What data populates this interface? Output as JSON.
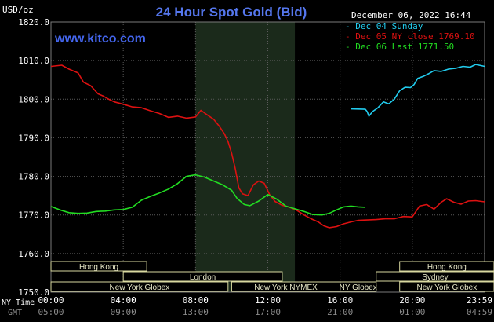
{
  "chart_data": {
    "type": "line",
    "title": "24 Hour Spot Gold (Bid)",
    "unit_label": "USD/oz",
    "watermark": "www.kitco.com",
    "timestamp": "December 06, 2022 16:44",
    "ylim": [
      1750,
      1820
    ],
    "yticks": [
      "1820.0",
      "1810.0",
      "1800.0",
      "1790.0",
      "1780.0",
      "1770.0",
      "1760.0",
      "1750.0"
    ],
    "ytick_values": [
      1820,
      1810,
      1800,
      1790,
      1780,
      1770,
      1760,
      1750
    ],
    "xlim": [
      0,
      24
    ],
    "x_unit": "hours (NY time)",
    "ny_time_label": "NY Time",
    "gmt_label": "GMT",
    "xticks_ny": [
      "00:00",
      "04:00",
      "08:00",
      "12:00",
      "16:00",
      "20:00",
      "23:59"
    ],
    "xticks_gmt": [
      "05:00",
      "09:00",
      "13:00",
      "17:00",
      "21:00",
      "01:00",
      "04:59"
    ],
    "xtick_hours": [
      0,
      4,
      8,
      12,
      16,
      20,
      24
    ],
    "shade": {
      "from": 8.0,
      "to": 13.5
    },
    "grid": true,
    "legend": "top-right",
    "series": [
      {
        "name": "Dec 04 Sunday",
        "color": "#22ccee",
        "points": [
          [
            16.6,
            1797.5
          ],
          [
            17.4,
            1797.4
          ],
          [
            17.5,
            1796.8
          ],
          [
            17.6,
            1795.6
          ],
          [
            17.8,
            1796.8
          ],
          [
            18.1,
            1797.8
          ],
          [
            18.4,
            1799.3
          ],
          [
            18.7,
            1798.8
          ],
          [
            19.0,
            1800.0
          ],
          [
            19.3,
            1802.2
          ],
          [
            19.6,
            1803.1
          ],
          [
            19.9,
            1803.0
          ],
          [
            20.1,
            1803.8
          ],
          [
            20.3,
            1805.4
          ],
          [
            20.6,
            1805.9
          ],
          [
            20.9,
            1806.6
          ],
          [
            21.2,
            1807.4
          ],
          [
            21.6,
            1807.2
          ],
          [
            22.0,
            1807.8
          ],
          [
            22.4,
            1808.0
          ],
          [
            22.8,
            1808.5
          ],
          [
            23.2,
            1808.3
          ],
          [
            23.5,
            1809.0
          ],
          [
            23.8,
            1808.7
          ],
          [
            24.0,
            1808.5
          ]
        ]
      },
      {
        "name": "Dec 05 NY close",
        "value": "1769.10",
        "color": "#dd1111",
        "points": [
          [
            0,
            1808.5
          ],
          [
            0.6,
            1808.8
          ],
          [
            1.0,
            1807.8
          ],
          [
            1.5,
            1806.8
          ],
          [
            1.8,
            1804.4
          ],
          [
            2.2,
            1803.5
          ],
          [
            2.6,
            1801.4
          ],
          [
            2.9,
            1800.8
          ],
          [
            3.2,
            1800.0
          ],
          [
            3.5,
            1799.3
          ],
          [
            4.0,
            1798.7
          ],
          [
            4.5,
            1798.0
          ],
          [
            5.0,
            1797.8
          ],
          [
            5.5,
            1797.0
          ],
          [
            6.0,
            1796.3
          ],
          [
            6.5,
            1795.3
          ],
          [
            7.0,
            1795.6
          ],
          [
            7.5,
            1795.1
          ],
          [
            8.0,
            1795.4
          ],
          [
            8.3,
            1797.1
          ],
          [
            8.6,
            1796.1
          ],
          [
            9.0,
            1794.8
          ],
          [
            9.3,
            1793.1
          ],
          [
            9.6,
            1791.0
          ],
          [
            9.8,
            1789.0
          ],
          [
            10.0,
            1786.0
          ],
          [
            10.2,
            1782.0
          ],
          [
            10.4,
            1777.0
          ],
          [
            10.6,
            1775.5
          ],
          [
            10.9,
            1775.0
          ],
          [
            11.2,
            1777.8
          ],
          [
            11.5,
            1778.8
          ],
          [
            11.8,
            1778.2
          ],
          [
            12.1,
            1775.3
          ],
          [
            12.4,
            1773.5
          ],
          [
            12.8,
            1772.5
          ],
          [
            13.2,
            1772.0
          ],
          [
            13.6,
            1771.2
          ],
          [
            14.0,
            1770.0
          ],
          [
            14.4,
            1769.0
          ],
          [
            14.8,
            1768.2
          ],
          [
            15.1,
            1767.2
          ],
          [
            15.4,
            1766.7
          ],
          [
            15.8,
            1767.0
          ],
          [
            16.2,
            1767.7
          ],
          [
            16.6,
            1768.2
          ],
          [
            17.0,
            1768.6
          ],
          [
            17.5,
            1768.7
          ],
          [
            18.0,
            1768.8
          ],
          [
            18.5,
            1769.0
          ],
          [
            19.0,
            1769.0
          ],
          [
            19.5,
            1769.6
          ],
          [
            20.0,
            1769.5
          ],
          [
            20.4,
            1772.3
          ],
          [
            20.8,
            1772.7
          ],
          [
            21.2,
            1771.5
          ],
          [
            21.6,
            1773.3
          ],
          [
            21.9,
            1774.2
          ],
          [
            22.3,
            1773.3
          ],
          [
            22.7,
            1772.8
          ],
          [
            23.1,
            1773.6
          ],
          [
            23.5,
            1773.7
          ],
          [
            24.0,
            1773.4
          ]
        ]
      },
      {
        "name": "Dec 06 Last",
        "value": "1771.50",
        "color": "#22dd22",
        "points": [
          [
            0,
            1772.2
          ],
          [
            0.5,
            1771.3
          ],
          [
            1.0,
            1770.6
          ],
          [
            1.5,
            1770.4
          ],
          [
            2.0,
            1770.5
          ],
          [
            2.5,
            1770.9
          ],
          [
            3.0,
            1771.0
          ],
          [
            3.5,
            1771.3
          ],
          [
            4.0,
            1771.4
          ],
          [
            4.5,
            1772.0
          ],
          [
            5.0,
            1773.8
          ],
          [
            5.5,
            1774.8
          ],
          [
            6.0,
            1775.7
          ],
          [
            6.5,
            1776.7
          ],
          [
            7.0,
            1778.1
          ],
          [
            7.5,
            1780.0
          ],
          [
            8.0,
            1780.4
          ],
          [
            8.5,
            1779.8
          ],
          [
            9.0,
            1778.8
          ],
          [
            9.5,
            1777.8
          ],
          [
            10.0,
            1776.4
          ],
          [
            10.3,
            1774.3
          ],
          [
            10.7,
            1772.7
          ],
          [
            11.0,
            1772.4
          ],
          [
            11.5,
            1773.6
          ],
          [
            12.0,
            1775.3
          ],
          [
            12.5,
            1774.1
          ],
          [
            13.0,
            1772.3
          ],
          [
            13.5,
            1771.6
          ],
          [
            14.0,
            1770.9
          ],
          [
            14.5,
            1770.1
          ],
          [
            15.0,
            1770.0
          ],
          [
            15.4,
            1770.4
          ],
          [
            15.8,
            1771.3
          ],
          [
            16.2,
            1772.1
          ],
          [
            16.6,
            1772.3
          ],
          [
            17.0,
            1772.1
          ],
          [
            17.4,
            1772.0
          ]
        ]
      }
    ],
    "market_bands": [
      {
        "label": "Hong Kong",
        "from": 0.0,
        "to": 5.3,
        "row": 0
      },
      {
        "label": "London",
        "from": 4.0,
        "to": 12.8,
        "row": 1
      },
      {
        "label": "New York Globex",
        "from": 0.0,
        "to": 9.8,
        "row": 2
      },
      {
        "label": "New York NYMEX",
        "from": 10.0,
        "to": 16.0,
        "row": 2
      },
      {
        "label": "NY Globex",
        "from": 16.0,
        "to": 18.0,
        "row": 2
      },
      {
        "label": "Hong Kong",
        "from": 19.3,
        "to": 25.0,
        "row": 0
      },
      {
        "label": "Sydney",
        "from": 18.0,
        "to": 24.6,
        "row": 1
      },
      {
        "label": "New York Globex",
        "from": 19.3,
        "to": 25.0,
        "row": 2
      }
    ]
  }
}
